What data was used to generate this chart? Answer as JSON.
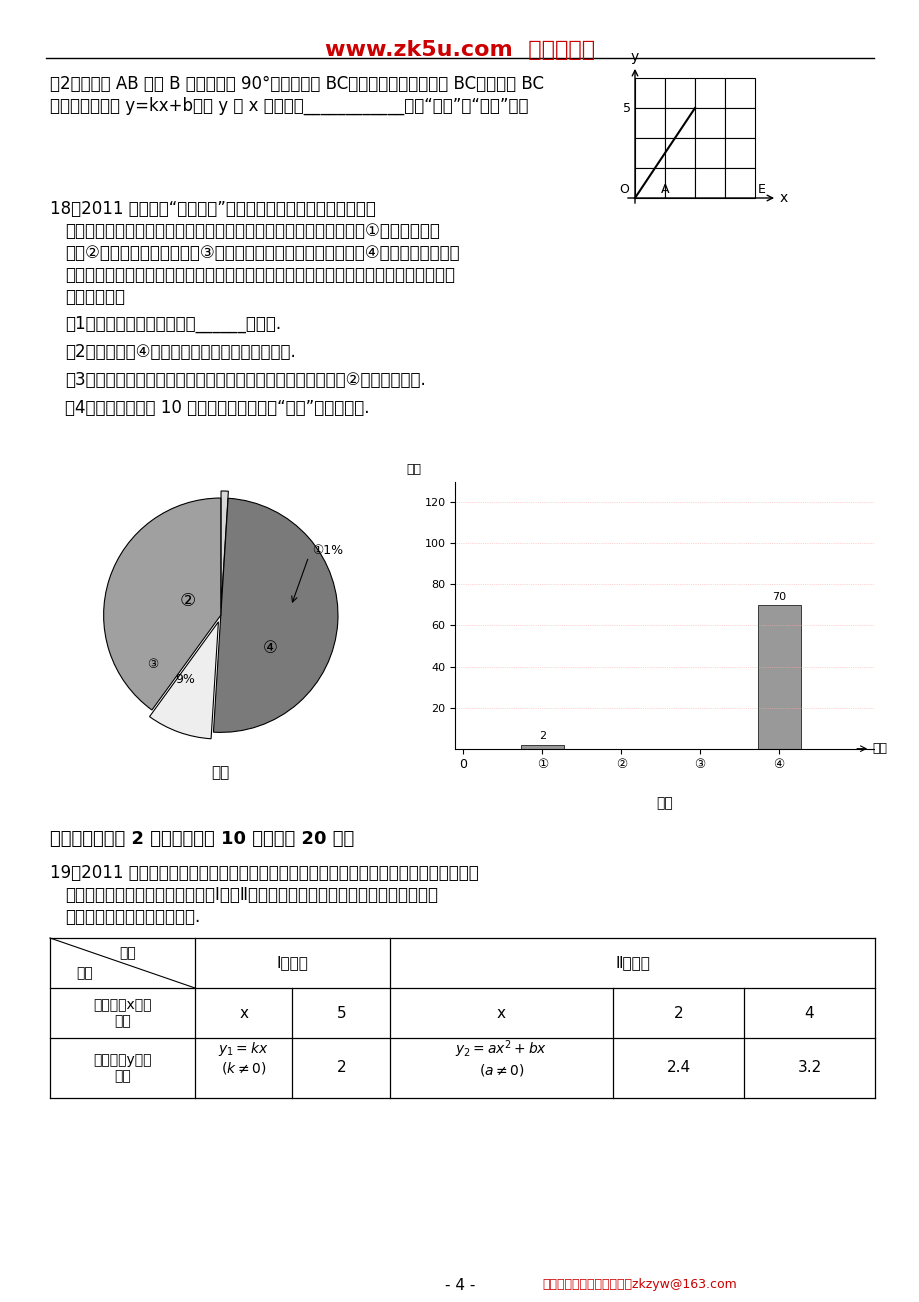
{
  "title_text": "www.zk5u.com  中考资源网",
  "title_color": "#cc0000",
  "bg_color": "#ffffff",
  "section17_line1": "（2）将线段 AB 绕点 B 逆时针旋转 90°，得到线段 BC，请在下图中画出线段 BC．若直线 BC",
  "section17_line2": "的函数解析式为 y=kx+b，则 y 随 x 的增大而____________（填“增大”或“减小”）．",
  "section18_intro": "18、2011 年国家对“酒后驾车”加大了处罚力度，出台了不准酒后",
  "section18_line1": "停车场对开车的司机进行了相关的调查．本次调查结果有四种情况：①不喝酒直接开",
  "section18_line2": "车；②已戝酒或从来不喝酒；③喝酒后不开车或请专业司机代驾；④平时喝酒，但开车",
  "section18_line3": "当天不喝酒．将这次调查情况整理并绘制了如下尚不完整的统计图，请根据相关信息，解",
  "section18_line4": "答下列问题．",
  "q1": "（1）该记者本次一共调查了______名司机.",
  "q2": "（2）求图甲中④所在扇形的圆心角，并补全图乙.",
  "q3": "（3）在本次调查中，记者随机采访其中的一名司机，求他属第②种情况的概率.",
  "q4": "（4）请估计开车的 10 万名司机中，不违反“酒驾”禁令的人数.",
  "section5_title": "五、（本大题共 2 小题，每小题 10 分，满分 20 分）",
  "section19_intro": "19、2011 年长江中下游地区发生了特大旱情，为抗旱保丰收，某地政府制定了农户投资购",
  "section19_line1": "买抗旱设备的补贴办法．其中购买Ⅰ型、Ⅱ型抗旱设备所投资的金额与政府补贴的额度",
  "section19_line2": "存在下表所示的函数对应关系.",
  "footer_text": "- 4 -",
  "footer_right": "中考资源网期待您的投稿！zkzyw@163.com"
}
